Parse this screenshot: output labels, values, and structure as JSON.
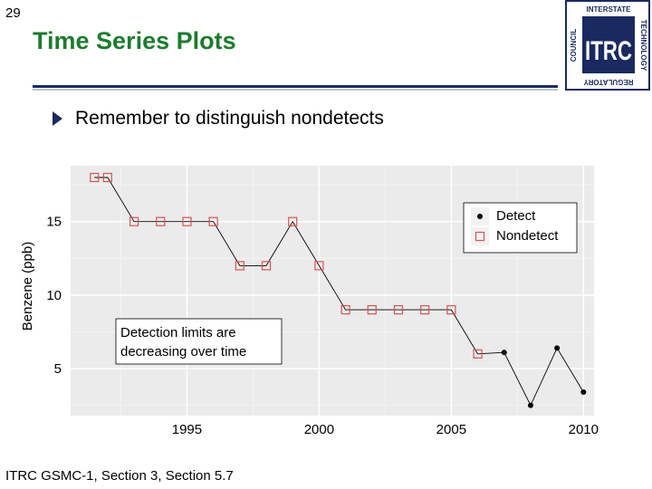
{
  "slide": {
    "number": "29",
    "title": "Time Series Plots",
    "bullet": "Remember to distinguish nondetects",
    "footer": "ITRC GSMC-1, Section 3, Section 5.7"
  },
  "logo": {
    "main": "ITRC",
    "top": "INTERSTATE",
    "right": "TECHNOLOGY",
    "left": "COUNCIL",
    "bottom": "REGULATORY"
  },
  "colors": {
    "title": "#1e7b2e",
    "rule": "#1a2a60",
    "nondetect": "#d9534f",
    "detect": "#000000",
    "logo": "#1a2a60"
  },
  "chart_data": {
    "type": "scatter",
    "title": "",
    "xlabel": "",
    "ylabel": "Benzene (ppb)",
    "xlim": [
      1990.6,
      2010.4
    ],
    "ylim": [
      1.8,
      18.8
    ],
    "xticks": [
      1995,
      2000,
      2005,
      2010
    ],
    "yticks": [
      5,
      10,
      15
    ],
    "grid": true,
    "legend": {
      "position": "top-right",
      "entries": [
        "Detect",
        "Nondetect"
      ]
    },
    "annotation": {
      "text": [
        "Detection limits are",
        "decreasing over time"
      ]
    },
    "series": [
      {
        "name": "Nondetect",
        "marker": "open-square",
        "points": [
          {
            "x": 1991.5,
            "y": 18
          },
          {
            "x": 1992,
            "y": 18
          },
          {
            "x": 1993,
            "y": 15
          },
          {
            "x": 1994,
            "y": 15
          },
          {
            "x": 1995,
            "y": 15
          },
          {
            "x": 1996,
            "y": 15
          },
          {
            "x": 1997,
            "y": 12
          },
          {
            "x": 1998,
            "y": 12
          },
          {
            "x": 1999,
            "y": 15
          },
          {
            "x": 2000,
            "y": 12
          },
          {
            "x": 2001,
            "y": 9
          },
          {
            "x": 2002,
            "y": 9
          },
          {
            "x": 2003,
            "y": 9
          },
          {
            "x": 2004,
            "y": 9
          },
          {
            "x": 2005,
            "y": 9
          },
          {
            "x": 2006,
            "y": 6
          }
        ]
      },
      {
        "name": "Detect",
        "marker": "filled-circle",
        "points": [
          {
            "x": 2007,
            "y": 6.1
          },
          {
            "x": 2008,
            "y": 2.5
          },
          {
            "x": 2009,
            "y": 6.4
          },
          {
            "x": 2010,
            "y": 3.4
          }
        ]
      }
    ]
  }
}
